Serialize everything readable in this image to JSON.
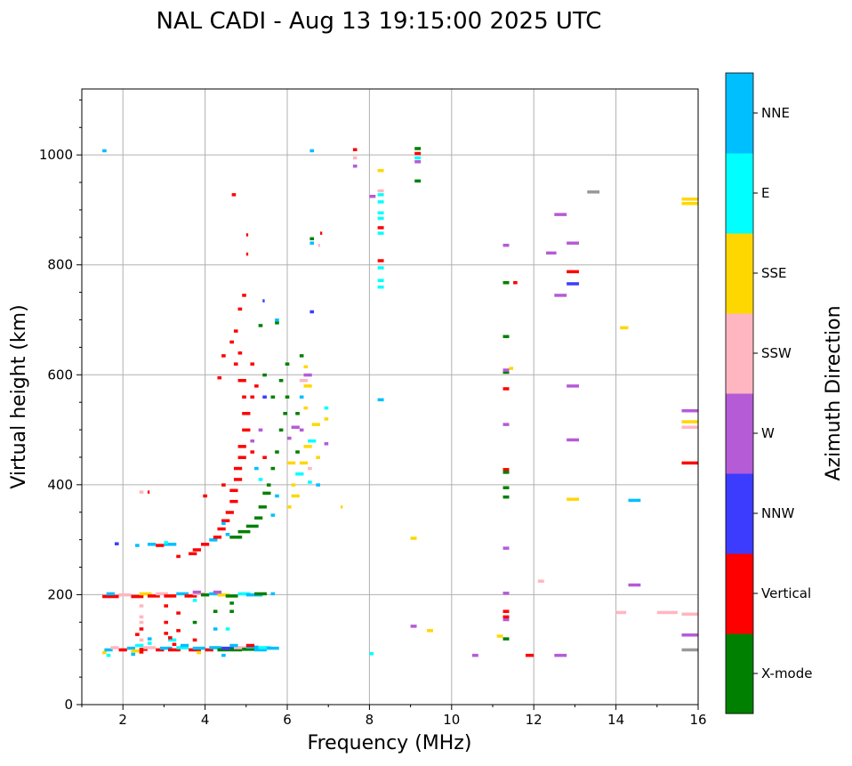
{
  "chart_data": {
    "type": "scatter",
    "title": "NAL CADI - Aug 13 19:15:00 2025 UTC",
    "xlabel": "Frequency (MHz)",
    "ylabel": "Virtual height (km)",
    "xlim": [
      1,
      16
    ],
    "ylim": [
      0,
      1120
    ],
    "xticks": [
      2,
      4,
      6,
      8,
      10,
      12,
      14,
      16
    ],
    "yticks": [
      0,
      200,
      400,
      600,
      800,
      1000
    ],
    "grid": true,
    "colorbar": {
      "label": "Azimuth Direction",
      "categories": [
        "X-mode",
        "Vertical",
        "NNW",
        "W",
        "SSW",
        "SSE",
        "E",
        "NNE"
      ],
      "colors": {
        "X-mode": "#008000",
        "Vertical": "#ff0000",
        "NNW": "#3c3cff",
        "W": "#b55bd6",
        "SSW": "#ffb6c1",
        "SSE": "#ffd700",
        "E": "#00ffff",
        "NNE": "#00bfff",
        "none": "#999999"
      }
    },
    "runs_format": [
      "freq_start_MHz",
      "freq_end_MHz",
      "height_km",
      "direction"
    ],
    "runs": [
      [
        1.5,
        1.6,
        95,
        "SSE"
      ],
      [
        1.55,
        1.75,
        100,
        "NNE"
      ],
      [
        1.7,
        1.9,
        104,
        "SSW"
      ],
      [
        1.9,
        2.1,
        100,
        "Vertical"
      ],
      [
        2.1,
        2.3,
        103,
        "NNE"
      ],
      [
        2.2,
        2.4,
        98,
        "SSE"
      ],
      [
        2.4,
        2.6,
        101,
        "Vertical"
      ],
      [
        2.5,
        2.8,
        104,
        "SSW"
      ],
      [
        2.8,
        3.0,
        100,
        "Vertical"
      ],
      [
        2.9,
        3.2,
        103,
        "NNE"
      ],
      [
        3.1,
        3.4,
        100,
        "Vertical"
      ],
      [
        3.3,
        3.6,
        104,
        "E"
      ],
      [
        3.6,
        3.9,
        100,
        "Vertical"
      ],
      [
        3.7,
        4.0,
        103,
        "NNE"
      ],
      [
        4.0,
        4.2,
        100,
        "Vertical"
      ],
      [
        4.1,
        4.4,
        104,
        "NNE"
      ],
      [
        4.3,
        4.6,
        100,
        "X-mode"
      ],
      [
        4.4,
        4.7,
        103,
        "NNW"
      ],
      [
        4.6,
        4.9,
        100,
        "X-mode"
      ],
      [
        4.7,
        5.0,
        104,
        "SSW"
      ],
      [
        4.9,
        5.2,
        101,
        "X-mode"
      ],
      [
        5.0,
        5.3,
        105,
        "NNE"
      ],
      [
        5.2,
        5.5,
        100,
        "NNE"
      ],
      [
        5.3,
        5.6,
        104,
        "E"
      ],
      [
        5.5,
        5.8,
        103,
        "NNE"
      ],
      [
        2.3,
        2.5,
        108,
        "E"
      ],
      [
        3.4,
        3.6,
        108,
        "NNE"
      ],
      [
        4.6,
        4.8,
        108,
        "NNE"
      ],
      [
        5.0,
        5.2,
        108,
        "Vertical"
      ],
      [
        1.6,
        1.7,
        90,
        "E"
      ],
      [
        2.2,
        2.3,
        92,
        "NNE"
      ],
      [
        3.8,
        3.9,
        95,
        "SSE"
      ],
      [
        4.4,
        4.5,
        90,
        "NNE"
      ],
      [
        2.4,
        2.5,
        96,
        "Vertical"
      ],
      [
        2.6,
        2.7,
        112,
        "E"
      ],
      [
        3.2,
        3.3,
        110,
        "Vertical"
      ],
      [
        2.4,
        2.5,
        118,
        "SSW"
      ],
      [
        2.3,
        2.4,
        128,
        "Vertical"
      ],
      [
        2.4,
        2.5,
        138,
        "Vertical"
      ],
      [
        2.4,
        2.5,
        150,
        "SSW"
      ],
      [
        2.4,
        2.5,
        160,
        "SSW"
      ],
      [
        2.4,
        2.5,
        180,
        "SSW"
      ],
      [
        2.6,
        2.7,
        120,
        "NNE"
      ],
      [
        3.1,
        3.3,
        118,
        "E"
      ],
      [
        3.0,
        3.1,
        130,
        "Vertical"
      ],
      [
        3.1,
        3.2,
        122,
        "Vertical"
      ],
      [
        3.0,
        3.1,
        150,
        "Vertical"
      ],
      [
        3.0,
        3.1,
        180,
        "Vertical"
      ],
      [
        3.3,
        3.4,
        135,
        "Vertical"
      ],
      [
        3.7,
        3.8,
        118,
        "Vertical"
      ],
      [
        3.7,
        3.8,
        150,
        "X-mode"
      ],
      [
        3.7,
        3.8,
        190,
        "E"
      ],
      [
        4.2,
        4.3,
        138,
        "NNE"
      ],
      [
        4.2,
        4.3,
        170,
        "X-mode"
      ],
      [
        4.6,
        4.7,
        170,
        "X-mode"
      ],
      [
        4.6,
        4.7,
        185,
        "X-mode"
      ],
      [
        4.5,
        4.6,
        138,
        "E"
      ],
      [
        3.3,
        3.4,
        167,
        "Vertical"
      ],
      [
        1.5,
        1.9,
        197,
        "Vertical"
      ],
      [
        1.6,
        1.8,
        202,
        "NNE"
      ],
      [
        1.9,
        2.2,
        200,
        "SSW"
      ],
      [
        2.2,
        2.5,
        197,
        "Vertical"
      ],
      [
        2.4,
        2.7,
        202,
        "SSE"
      ],
      [
        2.6,
        2.9,
        198,
        "Vertical"
      ],
      [
        2.8,
        3.1,
        202,
        "SSW"
      ],
      [
        3.0,
        3.3,
        198,
        "Vertical"
      ],
      [
        3.3,
        3.6,
        202,
        "NNE"
      ],
      [
        3.5,
        3.8,
        198,
        "Vertical"
      ],
      [
        3.7,
        4.0,
        202,
        "SSW"
      ],
      [
        3.9,
        4.1,
        200,
        "X-mode"
      ],
      [
        4.1,
        4.4,
        202,
        "NNE"
      ],
      [
        4.3,
        4.6,
        200,
        "SSE"
      ],
      [
        4.5,
        4.8,
        198,
        "X-mode"
      ],
      [
        4.8,
        5.1,
        202,
        "E"
      ],
      [
        5.0,
        5.4,
        200,
        "NNE"
      ],
      [
        5.2,
        5.5,
        202,
        "X-mode"
      ],
      [
        5.6,
        5.7,
        202,
        "NNE"
      ],
      [
        4.2,
        4.4,
        205,
        "W"
      ],
      [
        3.7,
        3.9,
        205,
        "W"
      ],
      [
        1.8,
        1.9,
        293,
        "NNW"
      ],
      [
        2.3,
        2.4,
        290,
        "NNE"
      ],
      [
        2.6,
        2.8,
        292,
        "NNE"
      ],
      [
        2.8,
        3.0,
        290,
        "Vertical"
      ],
      [
        3.0,
        3.3,
        292,
        "NNE"
      ],
      [
        3.3,
        3.4,
        270,
        "Vertical"
      ],
      [
        3.0,
        3.1,
        295,
        "E"
      ],
      [
        2.4,
        2.5,
        387,
        "SSW"
      ],
      [
        2.6,
        2.65,
        387,
        "Vertical"
      ],
      [
        3.6,
        3.8,
        275,
        "Vertical"
      ],
      [
        3.7,
        3.9,
        282,
        "Vertical"
      ],
      [
        3.9,
        4.1,
        292,
        "Vertical"
      ],
      [
        3.95,
        4.05,
        380,
        "Vertical"
      ],
      [
        4.1,
        4.3,
        300,
        "NNE"
      ],
      [
        4.2,
        4.4,
        305,
        "Vertical"
      ],
      [
        4.3,
        4.5,
        320,
        "Vertical"
      ],
      [
        4.4,
        4.6,
        335,
        "Vertical"
      ],
      [
        4.5,
        4.7,
        350,
        "Vertical"
      ],
      [
        4.6,
        4.8,
        370,
        "Vertical"
      ],
      [
        4.6,
        4.8,
        390,
        "Vertical"
      ],
      [
        4.7,
        4.9,
        410,
        "Vertical"
      ],
      [
        4.7,
        4.9,
        430,
        "Vertical"
      ],
      [
        4.8,
        5.0,
        450,
        "Vertical"
      ],
      [
        4.8,
        5.0,
        470,
        "Vertical"
      ],
      [
        4.9,
        5.1,
        500,
        "Vertical"
      ],
      [
        4.9,
        5.1,
        530,
        "Vertical"
      ],
      [
        4.9,
        5.0,
        560,
        "Vertical"
      ],
      [
        4.8,
        5.0,
        590,
        "Vertical"
      ],
      [
        4.7,
        4.8,
        620,
        "Vertical"
      ],
      [
        4.8,
        4.9,
        640,
        "Vertical"
      ],
      [
        4.6,
        4.7,
        660,
        "Vertical"
      ],
      [
        4.7,
        4.8,
        680,
        "Vertical"
      ],
      [
        4.8,
        4.9,
        720,
        "Vertical"
      ],
      [
        4.9,
        5.0,
        745,
        "Vertical"
      ],
      [
        5.0,
        5.05,
        820,
        "Vertical"
      ],
      [
        5.0,
        5.05,
        855,
        "Vertical"
      ],
      [
        4.65,
        4.75,
        928,
        "Vertical"
      ],
      [
        4.3,
        4.4,
        595,
        "Vertical"
      ],
      [
        4.4,
        4.5,
        635,
        "Vertical"
      ],
      [
        4.5,
        4.6,
        310,
        "NNE"
      ],
      [
        4.4,
        4.5,
        330,
        "NNE"
      ],
      [
        4.4,
        4.5,
        400,
        "Vertical"
      ],
      [
        5.1,
        5.2,
        560,
        "Vertical"
      ],
      [
        5.2,
        5.3,
        580,
        "Vertical"
      ],
      [
        5.1,
        5.2,
        620,
        "Vertical"
      ],
      [
        5.1,
        5.2,
        480,
        "W"
      ],
      [
        5.1,
        5.2,
        460,
        "Vertical"
      ],
      [
        5.2,
        5.3,
        430,
        "NNE"
      ],
      [
        5.3,
        5.4,
        500,
        "W"
      ],
      [
        5.4,
        5.5,
        560,
        "NNW"
      ],
      [
        5.3,
        5.4,
        690,
        "X-mode"
      ],
      [
        5.4,
        5.45,
        735,
        "NNW"
      ],
      [
        5.3,
        5.4,
        410,
        "E"
      ],
      [
        5.4,
        5.5,
        450,
        "Vertical"
      ],
      [
        4.6,
        4.9,
        305,
        "X-mode"
      ],
      [
        4.8,
        5.1,
        315,
        "X-mode"
      ],
      [
        5.0,
        5.3,
        325,
        "X-mode"
      ],
      [
        5.2,
        5.4,
        340,
        "X-mode"
      ],
      [
        5.3,
        5.5,
        360,
        "X-mode"
      ],
      [
        5.4,
        5.6,
        385,
        "X-mode"
      ],
      [
        5.5,
        5.6,
        400,
        "X-mode"
      ],
      [
        5.6,
        5.7,
        430,
        "X-mode"
      ],
      [
        5.7,
        5.8,
        460,
        "X-mode"
      ],
      [
        5.8,
        5.9,
        500,
        "X-mode"
      ],
      [
        5.9,
        6.0,
        530,
        "X-mode"
      ],
      [
        5.95,
        6.05,
        560,
        "X-mode"
      ],
      [
        5.8,
        5.9,
        590,
        "X-mode"
      ],
      [
        5.95,
        6.05,
        620,
        "X-mode"
      ],
      [
        5.7,
        5.8,
        695,
        "X-mode"
      ],
      [
        5.7,
        5.8,
        700,
        "NNE"
      ],
      [
        5.6,
        5.7,
        345,
        "NNE"
      ],
      [
        5.7,
        5.8,
        380,
        "NNE"
      ],
      [
        5.6,
        5.7,
        560,
        "X-mode"
      ],
      [
        5.4,
        5.5,
        600,
        "X-mode"
      ],
      [
        6.0,
        6.1,
        360,
        "SSE"
      ],
      [
        6.1,
        6.3,
        380,
        "SSE"
      ],
      [
        6.1,
        6.2,
        400,
        "SSE"
      ],
      [
        6.2,
        6.4,
        420,
        "E"
      ],
      [
        6.3,
        6.5,
        440,
        "SSE"
      ],
      [
        6.2,
        6.3,
        460,
        "X-mode"
      ],
      [
        6.4,
        6.6,
        470,
        "SSE"
      ],
      [
        6.3,
        6.4,
        500,
        "W"
      ],
      [
        6.2,
        6.3,
        530,
        "X-mode"
      ],
      [
        6.4,
        6.5,
        540,
        "SSE"
      ],
      [
        6.3,
        6.4,
        560,
        "NNE"
      ],
      [
        6.4,
        6.6,
        580,
        "SSE"
      ],
      [
        6.3,
        6.5,
        590,
        "SSW"
      ],
      [
        6.4,
        6.5,
        615,
        "SSE"
      ],
      [
        6.3,
        6.4,
        635,
        "X-mode"
      ],
      [
        6.4,
        6.6,
        600,
        "W"
      ],
      [
        6.5,
        6.7,
        480,
        "E"
      ],
      [
        6.6,
        6.8,
        510,
        "SSE"
      ],
      [
        6.7,
        6.8,
        450,
        "SSE"
      ],
      [
        6.5,
        6.6,
        430,
        "SSW"
      ],
      [
        6.7,
        6.8,
        400,
        "NNE"
      ],
      [
        6.9,
        7.0,
        520,
        "SSE"
      ],
      [
        6.9,
        7.0,
        540,
        "E"
      ],
      [
        6.9,
        7.0,
        475,
        "W"
      ],
      [
        6.0,
        6.1,
        485,
        "W"
      ],
      [
        6.1,
        6.3,
        505,
        "W"
      ],
      [
        6.0,
        6.2,
        440,
        "SSE"
      ],
      [
        6.5,
        6.6,
        405,
        "E"
      ],
      [
        7.3,
        7.35,
        360,
        "SSE"
      ],
      [
        6.55,
        6.65,
        715,
        "NNW"
      ],
      [
        6.55,
        6.65,
        840,
        "NNE"
      ],
      [
        6.55,
        6.65,
        848,
        "X-mode"
      ],
      [
        6.75,
        6.8,
        836,
        "SSW"
      ],
      [
        6.8,
        6.85,
        858,
        "Vertical"
      ],
      [
        6.55,
        6.65,
        1008,
        "NNE"
      ],
      [
        7.6,
        7.7,
        980,
        "W"
      ],
      [
        7.6,
        7.7,
        995,
        "SSW"
      ],
      [
        7.6,
        7.7,
        1010,
        "Vertical"
      ],
      [
        9.1,
        9.25,
        1012,
        "X-mode"
      ],
      [
        9.1,
        9.25,
        1003,
        "Vertical"
      ],
      [
        9.1,
        9.25,
        995,
        "E"
      ],
      [
        9.1,
        9.25,
        988,
        "W"
      ],
      [
        9.1,
        9.25,
        953,
        "X-mode"
      ],
      [
        8.2,
        8.35,
        972,
        "SSE"
      ],
      [
        8.2,
        8.35,
        935,
        "SSW"
      ],
      [
        8.0,
        8.15,
        925,
        "W"
      ],
      [
        8.2,
        8.35,
        928,
        "E"
      ],
      [
        8.2,
        8.35,
        915,
        "E"
      ],
      [
        8.2,
        8.35,
        895,
        "E"
      ],
      [
        8.2,
        8.35,
        885,
        "E"
      ],
      [
        8.2,
        8.35,
        868,
        "Vertical"
      ],
      [
        8.2,
        8.35,
        858,
        "E"
      ],
      [
        8.2,
        8.35,
        808,
        "Vertical"
      ],
      [
        8.2,
        8.35,
        795,
        "E"
      ],
      [
        8.2,
        8.35,
        772,
        "E"
      ],
      [
        8.2,
        8.35,
        760,
        "E"
      ],
      [
        8.2,
        8.35,
        555,
        "NNE"
      ],
      [
        8.0,
        8.1,
        93,
        "E"
      ],
      [
        9.0,
        9.15,
        303,
        "SSE"
      ],
      [
        9.0,
        9.15,
        143,
        "W"
      ],
      [
        9.4,
        9.55,
        135,
        "SSE"
      ],
      [
        10.5,
        10.65,
        90,
        "W"
      ],
      [
        11.1,
        11.25,
        125,
        "SSE"
      ],
      [
        11.25,
        11.4,
        120,
        "X-mode"
      ],
      [
        11.25,
        11.4,
        155,
        "W"
      ],
      [
        11.25,
        11.4,
        160,
        "Vertical"
      ],
      [
        11.25,
        11.4,
        170,
        "Vertical"
      ],
      [
        11.25,
        11.4,
        203,
        "W"
      ],
      [
        11.25,
        11.4,
        285,
        "W"
      ],
      [
        11.25,
        11.4,
        378,
        "X-mode"
      ],
      [
        11.25,
        11.4,
        395,
        "X-mode"
      ],
      [
        11.25,
        11.4,
        428,
        "Vertical"
      ],
      [
        11.25,
        11.4,
        423,
        "X-mode"
      ],
      [
        11.25,
        11.4,
        510,
        "W"
      ],
      [
        11.25,
        11.4,
        575,
        "Vertical"
      ],
      [
        11.25,
        11.4,
        605,
        "X-mode"
      ],
      [
        11.25,
        11.4,
        609,
        "W"
      ],
      [
        11.4,
        11.5,
        612,
        "SSE"
      ],
      [
        11.25,
        11.4,
        670,
        "X-mode"
      ],
      [
        11.25,
        11.4,
        768,
        "X-mode"
      ],
      [
        11.5,
        11.6,
        768,
        "Vertical"
      ],
      [
        11.25,
        11.4,
        836,
        "W"
      ],
      [
        11.8,
        12.0,
        90,
        "Vertical"
      ],
      [
        12.1,
        12.25,
        225,
        "SSW"
      ],
      [
        12.3,
        12.55,
        822,
        "W"
      ],
      [
        12.5,
        12.8,
        892,
        "W"
      ],
      [
        12.5,
        12.8,
        745,
        "W"
      ],
      [
        12.5,
        12.8,
        90,
        "W"
      ],
      [
        12.8,
        13.1,
        840,
        "W"
      ],
      [
        12.8,
        13.1,
        788,
        "Vertical"
      ],
      [
        12.8,
        13.1,
        766,
        "NNW"
      ],
      [
        12.8,
        13.1,
        580,
        "W"
      ],
      [
        12.8,
        13.1,
        482,
        "W"
      ],
      [
        12.8,
        13.1,
        374,
        "SSE"
      ],
      [
        13.3,
        13.6,
        933,
        "none"
      ],
      [
        14.1,
        14.3,
        686,
        "SSE"
      ],
      [
        14.3,
        14.6,
        372,
        "NNE"
      ],
      [
        14.3,
        14.6,
        218,
        "W"
      ],
      [
        14.0,
        14.25,
        168,
        "SSW"
      ],
      [
        15.0,
        15.5,
        168,
        "SSW"
      ],
      [
        15.6,
        16,
        920,
        "SSE"
      ],
      [
        15.6,
        16,
        912,
        "SSE"
      ],
      [
        15.6,
        16,
        535,
        "W"
      ],
      [
        15.6,
        16,
        515,
        "SSE"
      ],
      [
        15.6,
        16,
        505,
        "SSW"
      ],
      [
        15.6,
        16,
        440,
        "Vertical"
      ],
      [
        15.6,
        16,
        165,
        "SSW"
      ],
      [
        15.6,
        16,
        127,
        "W"
      ],
      [
        15.6,
        16,
        100,
        "none"
      ],
      [
        1.5,
        1.6,
        1008,
        "NNE"
      ]
    ]
  }
}
